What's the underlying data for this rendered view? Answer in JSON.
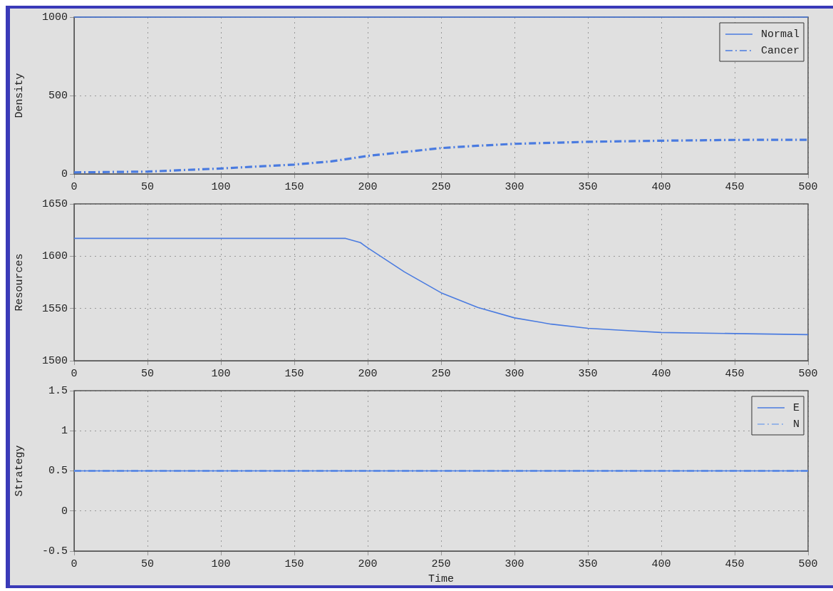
{
  "chart_data": [
    {
      "type": "line",
      "ylabel": "Density",
      "xlim": [
        0,
        500
      ],
      "xticks": [
        0,
        50,
        100,
        150,
        200,
        250,
        300,
        350,
        400,
        450,
        500
      ],
      "ylim": [
        0,
        1000
      ],
      "yticks": [
        0,
        500,
        1000
      ],
      "grid": true,
      "legend": "top right",
      "marker": "none",
      "series": [
        {
          "name": "Normal",
          "color": "#4a7be0",
          "line_style": "solid",
          "x": [
            0,
            500
          ],
          "values": [
            1000,
            1000
          ]
        },
        {
          "name": "Cancer",
          "color": "#4a7be0",
          "line_style": "dashed",
          "x": [
            0,
            50,
            100,
            150,
            175,
            200,
            225,
            250,
            275,
            300,
            350,
            400,
            450,
            500
          ],
          "values": [
            10,
            15,
            35,
            60,
            80,
            115,
            140,
            165,
            180,
            192,
            205,
            212,
            217,
            218
          ]
        }
      ]
    },
    {
      "type": "line",
      "ylabel": "Resources",
      "xlim": [
        0,
        500
      ],
      "xticks": [
        0,
        50,
        100,
        150,
        200,
        250,
        300,
        350,
        400,
        450,
        500
      ],
      "ylim": [
        1500,
        1650
      ],
      "yticks": [
        1500,
        1550,
        1600,
        1650
      ],
      "grid": true,
      "legend": false,
      "marker": "none",
      "series": [
        {
          "color": "#4a7be0",
          "line_style": "solid",
          "x": [
            0,
            185,
            195,
            200,
            225,
            250,
            275,
            300,
            325,
            350,
            375,
            400,
            450,
            500
          ],
          "values": [
            1617,
            1617,
            1613,
            1608,
            1585,
            1565,
            1551,
            1541,
            1535,
            1531,
            1529,
            1527,
            1526,
            1525
          ]
        }
      ]
    },
    {
      "type": "line",
      "ylabel": "Strategy",
      "xlabel": "Time",
      "xlim": [
        0,
        500
      ],
      "xticks": [
        0,
        50,
        100,
        150,
        200,
        250,
        300,
        350,
        400,
        450,
        500
      ],
      "ylim": [
        -0.5,
        1.5
      ],
      "yticks": [
        -0.5,
        0,
        0.5,
        1,
        1.5
      ],
      "grid": true,
      "legend": "top right",
      "marker": "none",
      "series": [
        {
          "name": "E",
          "color": "#4a7be0",
          "line_style": "solid",
          "x": [
            0,
            500
          ],
          "values": [
            0.5,
            0.5
          ]
        },
        {
          "name": "N",
          "color": "#7fa6e8",
          "line_style": "dashed",
          "x": [
            0,
            500
          ],
          "values": [
            0.5,
            0.5
          ]
        }
      ]
    }
  ]
}
